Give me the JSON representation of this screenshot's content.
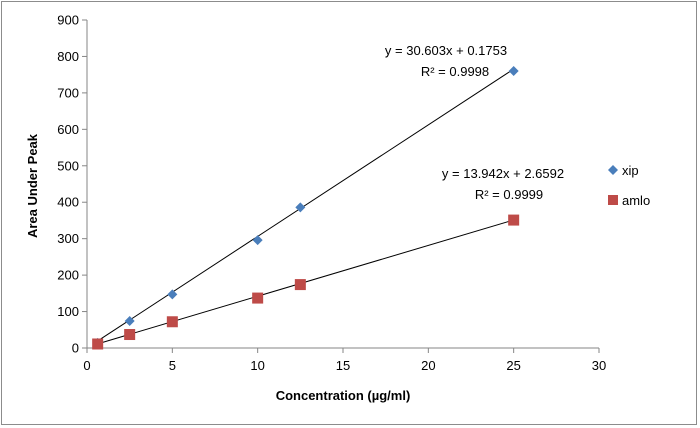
{
  "chart_data": {
    "type": "scatter",
    "xlabel": "Concentration (µg/ml)",
    "ylabel": "Area Under Peak",
    "xlim": [
      0,
      30
    ],
    "ylim": [
      0,
      900
    ],
    "xticks": [
      0,
      5,
      10,
      15,
      20,
      25,
      30
    ],
    "yticks": [
      0,
      100,
      200,
      300,
      400,
      500,
      600,
      700,
      800,
      900
    ],
    "grid": false,
    "legend_position": "right",
    "series": [
      {
        "name": "xip",
        "marker": "diamond",
        "color": "#4a7ebb",
        "x": [
          0.625,
          2.5,
          5,
          10,
          12.5,
          25
        ],
        "y": [
          14,
          74,
          147,
          296,
          386,
          760
        ],
        "trendline": {
          "slope": 30.603,
          "intercept": 0.1753
        },
        "equation": "y = 30.603x + 0.1753",
        "r2": "R² = 0.9998"
      },
      {
        "name": "amlo",
        "marker": "square",
        "color": "#be4b48",
        "x": [
          0.625,
          2.5,
          5,
          10,
          12.5,
          25
        ],
        "y": [
          11,
          37,
          72,
          137,
          174,
          351
        ],
        "trendline": {
          "slope": 13.942,
          "intercept": 2.6592
        },
        "equation": "y = 13.942x + 2.6592",
        "r2": "R² = 0.9999"
      }
    ]
  }
}
